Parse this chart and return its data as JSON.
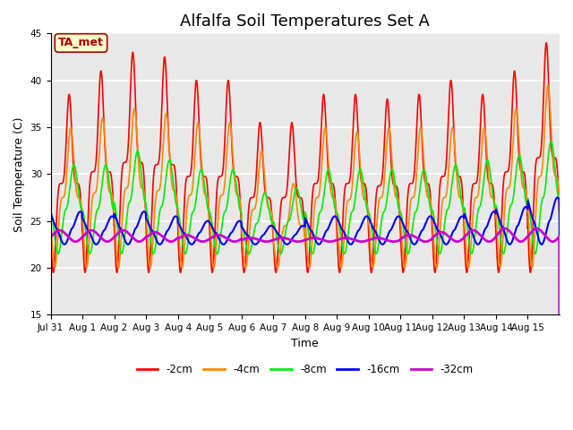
{
  "title": "Alfalfa Soil Temperatures Set A",
  "xlabel": "Time",
  "ylabel": "Soil Temperature (C)",
  "ylim": [
    15,
    45
  ],
  "xtick_labels": [
    "Jul 31",
    "Aug 1",
    "Aug 2",
    "Aug 3",
    "Aug 4",
    "Aug 5",
    "Aug 6",
    "Aug 7",
    "Aug 8",
    "Aug 9",
    "Aug 10",
    "Aug 11",
    "Aug 12",
    "Aug 13",
    "Aug 14",
    "Aug 15"
  ],
  "series_names": [
    "-2cm",
    "-4cm",
    "-8cm",
    "-16cm",
    "-32cm"
  ],
  "series_colors": [
    "#FF0000",
    "#FF8800",
    "#00EE00",
    "#0000FF",
    "#CC00CC"
  ],
  "series_lw": [
    1.2,
    1.2,
    1.2,
    1.5,
    2.0
  ],
  "peak_heights_2cm": [
    38.5,
    41.0,
    43.0,
    42.5,
    40.0,
    40.0,
    35.5,
    35.5,
    38.5,
    38.5,
    38.0,
    38.5,
    40.0,
    38.5,
    41.0,
    44.0
  ],
  "peak_heights_4cm": [
    35.0,
    36.0,
    37.0,
    36.5,
    35.5,
    35.5,
    32.5,
    29.0,
    35.0,
    34.5,
    35.0,
    35.0,
    35.0,
    35.0,
    37.0,
    39.5
  ],
  "peak_heights_8cm": [
    31.0,
    31.0,
    32.5,
    31.5,
    30.5,
    30.5,
    28.0,
    28.5,
    30.5,
    30.5,
    30.5,
    30.5,
    31.0,
    31.5,
    32.0,
    33.5
  ],
  "peak_heights_16cm": [
    26.0,
    25.5,
    26.0,
    25.5,
    25.0,
    25.0,
    24.5,
    24.5,
    25.5,
    25.5,
    25.5,
    25.5,
    25.5,
    26.0,
    26.5,
    27.5
  ],
  "peak_heights_32cm": [
    24.0,
    24.0,
    24.0,
    23.8,
    23.5,
    23.5,
    23.2,
    23.2,
    23.2,
    23.2,
    23.2,
    23.5,
    23.8,
    24.0,
    24.2,
    24.2
  ],
  "trough_2cm": 19.5,
  "trough_4cm": 20.0,
  "trough_8cm": 21.5,
  "trough_16cm": 22.5,
  "trough_32cm": 22.8,
  "phase_shift_2cm": 0.0,
  "phase_shift_4cm": 0.05,
  "phase_shift_8cm": 0.15,
  "phase_shift_16cm": 0.35,
  "phase_shift_32cm": 0.7,
  "skew_power_2cm": 4.0,
  "skew_power_4cm": 3.0,
  "skew_power_8cm": 2.0,
  "skew_power_16cm": 1.5,
  "skew_power_32cm": 1.1,
  "annotation_text": "TA_met",
  "annotation_box_color": "#FFFFCC",
  "annotation_text_color": "#AA0000",
  "bg_color": "#E8E8E8",
  "grid_color": "#FFFFFF",
  "title_fontsize": 13,
  "axis_label_fontsize": 9,
  "tick_fontsize": 7.5
}
